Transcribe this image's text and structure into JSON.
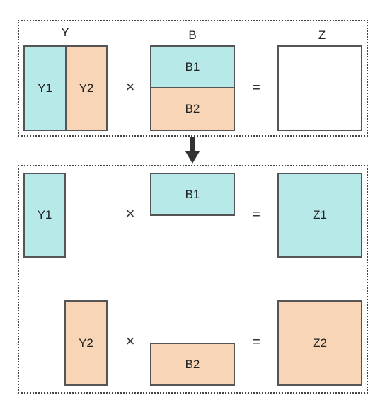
{
  "colors": {
    "teal": "#b6e9e8",
    "peach": "#f8d5b6",
    "outline": "#555555",
    "white": "#ffffff"
  },
  "top": {
    "labels": {
      "y": "Y",
      "b": "B",
      "z": "Z"
    },
    "y1": "Y1",
    "y2": "Y2",
    "b1": "B1",
    "b2": "B2",
    "times": "×",
    "equals": "="
  },
  "bottom": {
    "row1": {
      "y": "Y1",
      "b": "B1",
      "z": "Z1",
      "times": "×",
      "equals": "="
    },
    "row2": {
      "y": "Y2",
      "b": "B2",
      "z": "Z2",
      "times": "×",
      "equals": "="
    }
  }
}
